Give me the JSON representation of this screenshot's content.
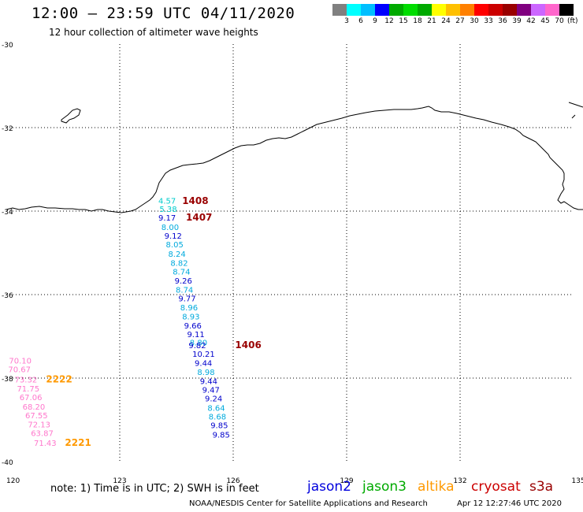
{
  "header": {
    "title": "12:00 – 23:59 UTC 04/11/2020",
    "subtitle": "12 hour collection of altimeter wave heights"
  },
  "colorbar": {
    "colors": [
      "#808080",
      "#00ffff",
      "#00bfff",
      "#0000ff",
      "#00aa00",
      "#00dd00",
      "#00aa00",
      "#ffff00",
      "#ffc000",
      "#ff8000",
      "#ff0000",
      "#cc0000",
      "#990000",
      "#800080",
      "#cc66ff",
      "#ff66cc",
      "#000000"
    ],
    "labels": [
      "3",
      "6",
      "9",
      "12",
      "15",
      "18",
      "21",
      "24",
      "27",
      "30",
      "33",
      "36",
      "39",
      "42",
      "45",
      "70"
    ],
    "unit": "(ft)"
  },
  "map": {
    "lat_labels": [
      "-30",
      "-32",
      "-34",
      "-36",
      "-38",
      "-40"
    ],
    "lon_labels": [
      "120",
      "123",
      "126",
      "129",
      "132",
      "135"
    ],
    "points": [
      {
        "text": "4.57",
        "color": "#00cccc",
        "lon": 124.02,
        "lat": -33.82
      },
      {
        "text": "5.38",
        "color": "#00cccc",
        "lon": 124.05,
        "lat": -34.02
      },
      {
        "text": "9.17",
        "color": "#0000cc",
        "lon": 124.02,
        "lat": -34.23
      },
      {
        "text": "8.00",
        "color": "#00aadd",
        "lon": 124.1,
        "lat": -34.45
      },
      {
        "text": "9.12",
        "color": "#0000cc",
        "lon": 124.18,
        "lat": -34.66
      },
      {
        "text": "8.05",
        "color": "#00aadd",
        "lon": 124.22,
        "lat": -34.87
      },
      {
        "text": "8.24",
        "color": "#00aadd",
        "lon": 124.28,
        "lat": -35.09
      },
      {
        "text": "8.82",
        "color": "#00aadd",
        "lon": 124.34,
        "lat": -35.31
      },
      {
        "text": "8.74",
        "color": "#00aadd",
        "lon": 124.4,
        "lat": -35.52
      },
      {
        "text": "9.26",
        "color": "#0000cc",
        "lon": 124.45,
        "lat": -35.74
      },
      {
        "text": "8.74",
        "color": "#00aadd",
        "lon": 124.48,
        "lat": -35.95
      },
      {
        "text": "9.77",
        "color": "#0000cc",
        "lon": 124.55,
        "lat": -36.16
      },
      {
        "text": "8.96",
        "color": "#00aadd",
        "lon": 124.6,
        "lat": -36.38
      },
      {
        "text": "8.93",
        "color": "#00aadd",
        "lon": 124.65,
        "lat": -36.59
      },
      {
        "text": "9.66",
        "color": "#0000cc",
        "lon": 124.7,
        "lat": -36.81
      },
      {
        "text": "9.11",
        "color": "#0000cc",
        "lon": 124.78,
        "lat": -37.02
      },
      {
        "text": "8.80",
        "color": "#00aadd",
        "lon": 124.85,
        "lat": -37.22
      },
      {
        "text": "9.82",
        "color": "#0000cc",
        "lon": 124.82,
        "lat": -37.28
      },
      {
        "text": "10.21",
        "color": "#0000cc",
        "lon": 124.92,
        "lat": -37.49
      },
      {
        "text": "9.44",
        "color": "#0000cc",
        "lon": 124.98,
        "lat": -37.71
      },
      {
        "text": "8.98",
        "color": "#00aadd",
        "lon": 125.05,
        "lat": -37.92
      },
      {
        "text": "9.44",
        "color": "#0000cc",
        "lon": 125.12,
        "lat": -38.14
      },
      {
        "text": "9.47",
        "color": "#0000cc",
        "lon": 125.18,
        "lat": -38.35
      },
      {
        "text": "9.24",
        "color": "#0000cc",
        "lon": 125.25,
        "lat": -38.56
      },
      {
        "text": "8.64",
        "color": "#00aadd",
        "lon": 125.32,
        "lat": -38.78
      },
      {
        "text": "8.68",
        "color": "#00aadd",
        "lon": 125.35,
        "lat": -38.99
      },
      {
        "text": "9.85",
        "color": "#0000cc",
        "lon": 125.4,
        "lat": -39.2
      },
      {
        "text": "9.85",
        "color": "#0000cc",
        "lon": 125.45,
        "lat": -39.42
      },
      {
        "text": "70.10",
        "color": "#ff77cc",
        "lon": 120.07,
        "lat": -37.65
      },
      {
        "text": "70.67",
        "color": "#ff77cc",
        "lon": 120.05,
        "lat": -37.86
      },
      {
        "text": "73.32",
        "color": "#ff77cc",
        "lon": 120.22,
        "lat": -38.1
      },
      {
        "text": "71.75",
        "color": "#ff77cc",
        "lon": 120.28,
        "lat": -38.32
      },
      {
        "text": "67.06",
        "color": "#ff77cc",
        "lon": 120.35,
        "lat": -38.53
      },
      {
        "text": "68.20",
        "color": "#ff77cc",
        "lon": 120.43,
        "lat": -38.75
      },
      {
        "text": "67.55",
        "color": "#ff77cc",
        "lon": 120.5,
        "lat": -38.96
      },
      {
        "text": "72.13",
        "color": "#ff77cc",
        "lon": 120.57,
        "lat": -39.18
      },
      {
        "text": "63.87",
        "color": "#ff77cc",
        "lon": 120.65,
        "lat": -39.39
      },
      {
        "text": "71.43",
        "color": "#ff77cc",
        "lon": 120.73,
        "lat": -39.62
      }
    ],
    "pass_labels": [
      {
        "text": "1408",
        "color": "#990000",
        "lon": 124.65,
        "lat": -33.83
      },
      {
        "text": "1407",
        "color": "#990000",
        "lon": 124.75,
        "lat": -34.23
      },
      {
        "text": "1406",
        "color": "#990000",
        "lon": 126.05,
        "lat": -37.28
      },
      {
        "text": "2222",
        "color": "#ff9900",
        "lon": 121.05,
        "lat": -38.1
      },
      {
        "text": "2221",
        "color": "#ff9900",
        "lon": 121.55,
        "lat": -39.62
      }
    ]
  },
  "footer": {
    "note": "note:  1) Time is in UTC;  2) SWH is in feet",
    "legend": [
      {
        "name": "jason2",
        "color": "#0000dd"
      },
      {
        "name": "jason3",
        "color": "#00aa00"
      },
      {
        "name": "altika",
        "color": "#ff9900"
      },
      {
        "name": "cryosat",
        "color": "#cc0000"
      },
      {
        "name": "s3a",
        "color": "#990000"
      }
    ],
    "credit": "NOAA/NESDIS Center for Satellite Applications and Research",
    "timestamp": "Apr 12 12:27:46 UTC 2020"
  }
}
